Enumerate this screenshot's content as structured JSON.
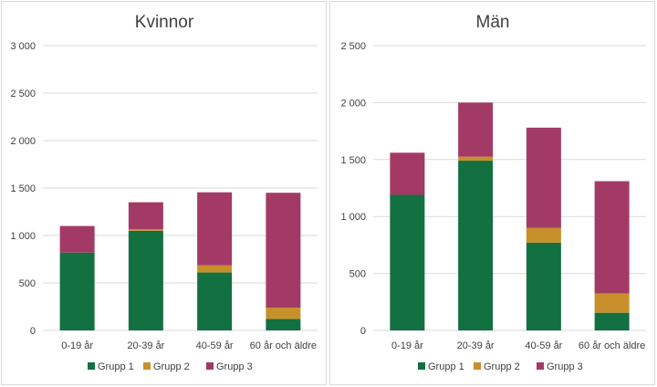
{
  "colors": {
    "grupp1": "#127041",
    "grupp2": "#c8902a",
    "grupp3": "#a33a66",
    "grid": "#d9d9d9",
    "text": "#404040"
  },
  "chart_data": [
    {
      "type": "bar",
      "stacked": true,
      "title": "Kvinnor",
      "categories": [
        "0-19 år",
        "20-39 år",
        "40-59 år",
        "60 år och äldre"
      ],
      "series": [
        {
          "name": "Grupp 1",
          "values": [
            820,
            1050,
            610,
            120
          ]
        },
        {
          "name": "Grupp 2",
          "values": [
            0,
            15,
            75,
            120
          ]
        },
        {
          "name": "Grupp 3",
          "values": [
            280,
            285,
            770,
            1210
          ]
        }
      ],
      "ylim": [
        0,
        3000
      ],
      "yticks": [
        0,
        500,
        1000,
        1500,
        2000,
        2500,
        3000
      ],
      "ytick_labels": [
        "0",
        "500",
        "1 000",
        "1 500",
        "2 000",
        "2 500",
        "3 000"
      ],
      "grid": true,
      "legend": "bottom"
    },
    {
      "type": "bar",
      "stacked": true,
      "title": "Män",
      "categories": [
        "0-19 år",
        "20-39 år",
        "40-59 år",
        "60 år och äldre"
      ],
      "series": [
        {
          "name": "Grupp 1",
          "values": [
            1190,
            1490,
            770,
            155
          ]
        },
        {
          "name": "Grupp 2",
          "values": [
            0,
            35,
            130,
            170
          ]
        },
        {
          "name": "Grupp 3",
          "values": [
            370,
            475,
            880,
            985
          ]
        }
      ],
      "ylim": [
        0,
        2500
      ],
      "yticks": [
        0,
        500,
        1000,
        1500,
        2000,
        2500
      ],
      "ytick_labels": [
        "0",
        "500",
        "1 000",
        "1 500",
        "2 000",
        "2 500"
      ],
      "grid": true,
      "legend": "bottom"
    }
  ]
}
